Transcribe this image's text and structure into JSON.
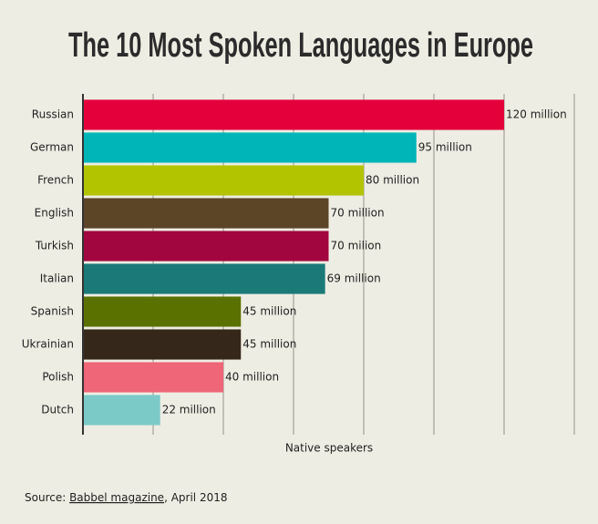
{
  "chart_data": {
    "type": "bar",
    "orientation": "horizontal",
    "title": "The 10 Most Spoken Languages in Europe",
    "xlabel": "Native speakers",
    "categories": [
      "Russian",
      "German",
      "French",
      "English",
      "Turkish",
      "Italian",
      "Spanish",
      "Ukrainian",
      "Polish",
      "Dutch"
    ],
    "values": [
      120,
      95,
      80,
      70,
      70,
      69,
      45,
      45,
      40,
      22
    ],
    "value_labels": [
      "120 million",
      "95 million",
      "80 million",
      "70 million",
      "70 milion",
      "69 million",
      "45 million",
      "45 million",
      "40 million",
      "22 million"
    ],
    "colors": [
      "#e4003b",
      "#00b5b8",
      "#b2c400",
      "#5c4427",
      "#a1063f",
      "#1b7a78",
      "#5a7100",
      "#35271a",
      "#ee6677",
      "#7ccac8"
    ],
    "xlim": [
      0,
      140
    ],
    "xticks": [
      0,
      20,
      40,
      60,
      80,
      100,
      120,
      140
    ],
    "grid": true,
    "source": {
      "prefix": "Source: ",
      "link": "Babbel magazine",
      "suffix": ", April 2018"
    }
  }
}
